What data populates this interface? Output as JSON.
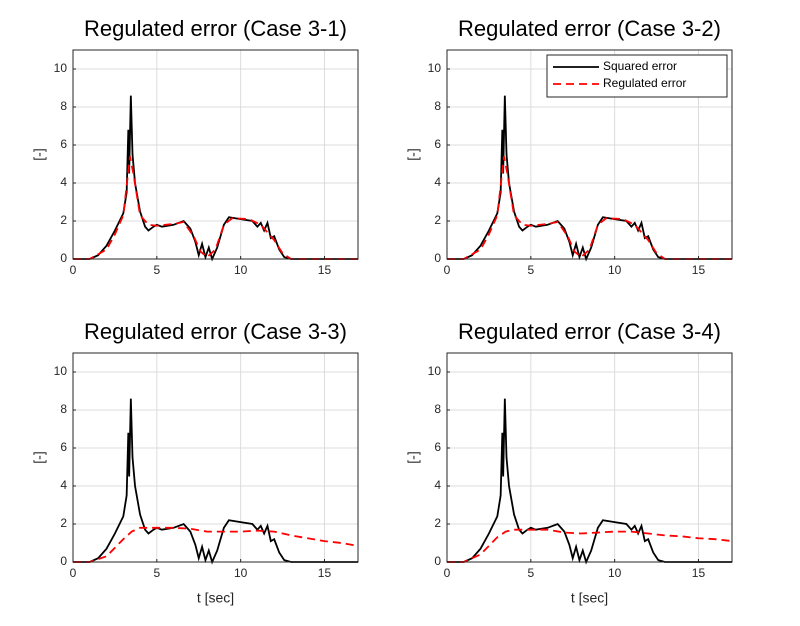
{
  "chart_data": [
    {
      "type": "line",
      "title": "Regulated error (Case 3-1)",
      "y_label": "[-]",
      "xlim": [
        0,
        17
      ],
      "ylim": [
        0,
        11
      ],
      "xticks": [
        0,
        5,
        10,
        15
      ],
      "yticks": [
        0,
        2,
        4,
        6,
        8,
        10
      ],
      "grid": true,
      "series": [
        {
          "color": "#000000",
          "line_style": "solid",
          "x": [
            0,
            1,
            1.5,
            2,
            2.5,
            3,
            3.2,
            3.3,
            3.35,
            3.45,
            3.55,
            3.7,
            4,
            4.3,
            4.5,
            4.8,
            5,
            5.3,
            6,
            6.6,
            7,
            7.3,
            7.5,
            7.7,
            7.9,
            8.1,
            8.3,
            8.6,
            9,
            9.3,
            10,
            10.7,
            11,
            11.2,
            11.4,
            11.6,
            11.8,
            12,
            12.3,
            12.6,
            13,
            17
          ],
          "values": [
            0,
            0,
            0.2,
            0.7,
            1.5,
            2.4,
            3.5,
            6.8,
            4.5,
            8.6,
            5.5,
            4,
            2.5,
            1.7,
            1.5,
            1.7,
            1.8,
            1.7,
            1.8,
            2,
            1.6,
            0.9,
            0.2,
            0.8,
            0.1,
            0.6,
            0,
            0.6,
            1.8,
            2.2,
            2.1,
            2,
            1.7,
            1.9,
            1.5,
            1.9,
            1.1,
            1.2,
            0.5,
            0.1,
            0,
            0
          ]
        },
        {
          "color": "#ff0000",
          "line_style": "dashed",
          "x": [
            0,
            1,
            2,
            2.5,
            3,
            3.4,
            3.6,
            4,
            4.5,
            5,
            6,
            6.6,
            7.2,
            7.6,
            8,
            8.5,
            9,
            9.5,
            10.5,
            11.2,
            12,
            12.5,
            13,
            17
          ],
          "values": [
            0,
            0,
            0.5,
            1.3,
            2.3,
            5.4,
            4.5,
            2.3,
            1.8,
            1.75,
            1.85,
            1.95,
            1.2,
            0.4,
            0.1,
            0.5,
            1.8,
            2.15,
            2.1,
            1.8,
            1,
            0.3,
            0,
            0
          ]
        }
      ]
    },
    {
      "type": "line",
      "title": "Regulated error (Case 3-2)",
      "y_label": "[-]",
      "xlim": [
        0,
        17
      ],
      "ylim": [
        0,
        11
      ],
      "xticks": [
        0,
        5,
        10,
        15
      ],
      "yticks": [
        0,
        2,
        4,
        6,
        8,
        10
      ],
      "grid": true,
      "legend": "upper right",
      "series": [
        {
          "name": "Squared error",
          "color": "#000000",
          "line_style": "solid",
          "x": [
            0,
            1,
            1.5,
            2,
            2.5,
            3,
            3.2,
            3.3,
            3.35,
            3.45,
            3.55,
            3.7,
            4,
            4.3,
            4.5,
            4.8,
            5,
            5.3,
            6,
            6.6,
            7,
            7.3,
            7.5,
            7.7,
            7.9,
            8.1,
            8.3,
            8.6,
            9,
            9.3,
            10,
            10.7,
            11,
            11.2,
            11.4,
            11.6,
            11.8,
            12,
            12.3,
            12.6,
            13,
            17
          ],
          "values": [
            0,
            0,
            0.2,
            0.7,
            1.5,
            2.4,
            3.5,
            6.8,
            4.5,
            8.6,
            5.5,
            4,
            2.5,
            1.7,
            1.5,
            1.7,
            1.8,
            1.7,
            1.8,
            2,
            1.6,
            0.9,
            0.2,
            0.8,
            0.1,
            0.6,
            0,
            0.6,
            1.8,
            2.2,
            2.1,
            2,
            1.7,
            1.9,
            1.5,
            1.9,
            1.1,
            1.2,
            0.5,
            0.1,
            0,
            0
          ]
        },
        {
          "name": "Regulated error",
          "color": "#ff0000",
          "line_style": "dashed",
          "x": [
            0,
            1,
            2,
            2.5,
            3,
            3.4,
            3.6,
            4,
            4.5,
            5,
            6,
            6.6,
            7.2,
            7.6,
            8,
            8.5,
            9,
            9.5,
            10.5,
            11.2,
            12,
            12.5,
            13,
            17
          ],
          "values": [
            0,
            0,
            0.5,
            1.3,
            2.3,
            5.4,
            4.5,
            2.3,
            1.8,
            1.75,
            1.85,
            1.95,
            1.2,
            0.4,
            0.1,
            0.5,
            1.8,
            2.15,
            2.1,
            1.8,
            1,
            0.3,
            0,
            0
          ]
        }
      ]
    },
    {
      "type": "line",
      "title": "Regulated error (Case 3-3)",
      "y_label": "[-]",
      "x_label": "t [sec]",
      "xlim": [
        0,
        17
      ],
      "ylim": [
        0,
        11
      ],
      "xticks": [
        0,
        5,
        10,
        15
      ],
      "yticks": [
        0,
        2,
        4,
        6,
        8,
        10
      ],
      "grid": true,
      "series": [
        {
          "color": "#000000",
          "line_style": "solid",
          "x": [
            0,
            1,
            1.5,
            2,
            2.5,
            3,
            3.2,
            3.3,
            3.35,
            3.45,
            3.55,
            3.7,
            4,
            4.3,
            4.5,
            4.8,
            5,
            5.3,
            6,
            6.6,
            7,
            7.3,
            7.5,
            7.7,
            7.9,
            8.1,
            8.3,
            8.6,
            9,
            9.3,
            10,
            10.7,
            11,
            11.2,
            11.4,
            11.6,
            11.8,
            12,
            12.3,
            12.6,
            13,
            17
          ],
          "values": [
            0,
            0,
            0.2,
            0.7,
            1.5,
            2.4,
            3.5,
            6.8,
            4.5,
            8.6,
            5.5,
            4,
            2.5,
            1.7,
            1.5,
            1.7,
            1.8,
            1.7,
            1.8,
            2,
            1.6,
            0.9,
            0.2,
            0.8,
            0.1,
            0.6,
            0,
            0.6,
            1.8,
            2.2,
            2.1,
            2,
            1.7,
            1.9,
            1.5,
            1.9,
            1.1,
            1.2,
            0.5,
            0.1,
            0,
            0
          ]
        },
        {
          "color": "#ff0000",
          "line_style": "dashed",
          "x": [
            0,
            1,
            2,
            3,
            3.5,
            4,
            5,
            6,
            7,
            8,
            9,
            10,
            11,
            12,
            13,
            14,
            15,
            16,
            17
          ],
          "values": [
            0,
            0,
            0.3,
            1.2,
            1.6,
            1.8,
            1.8,
            1.8,
            1.75,
            1.6,
            1.6,
            1.6,
            1.65,
            1.6,
            1.4,
            1.25,
            1.1,
            1,
            0.85
          ]
        }
      ]
    },
    {
      "type": "line",
      "title": "Regulated error (Case 3-4)",
      "y_label": "[-]",
      "x_label": "t [sec]",
      "xlim": [
        0,
        17
      ],
      "ylim": [
        0,
        11
      ],
      "xticks": [
        0,
        5,
        10,
        15
      ],
      "yticks": [
        0,
        2,
        4,
        6,
        8,
        10
      ],
      "grid": true,
      "series": [
        {
          "color": "#000000",
          "line_style": "solid",
          "x": [
            0,
            1,
            1.5,
            2,
            2.5,
            3,
            3.2,
            3.3,
            3.35,
            3.45,
            3.55,
            3.7,
            4,
            4.3,
            4.5,
            4.8,
            5,
            5.3,
            6,
            6.6,
            7,
            7.3,
            7.5,
            7.7,
            7.9,
            8.1,
            8.3,
            8.6,
            9,
            9.3,
            10,
            10.7,
            11,
            11.2,
            11.4,
            11.6,
            11.8,
            12,
            12.3,
            12.6,
            13,
            17
          ],
          "values": [
            0,
            0,
            0.2,
            0.7,
            1.5,
            2.4,
            3.5,
            6.8,
            4.5,
            8.6,
            5.5,
            4,
            2.5,
            1.7,
            1.5,
            1.7,
            1.8,
            1.7,
            1.8,
            2,
            1.6,
            0.9,
            0.2,
            0.8,
            0.1,
            0.6,
            0,
            0.6,
            1.8,
            2.2,
            2.1,
            2,
            1.7,
            1.9,
            1.5,
            1.9,
            1.1,
            1.2,
            0.5,
            0.1,
            0,
            0
          ]
        },
        {
          "color": "#ff0000",
          "line_style": "dashed",
          "x": [
            0,
            1,
            2,
            3,
            3.5,
            4,
            5,
            6,
            7,
            8,
            9,
            10,
            11,
            12,
            13,
            14,
            15,
            16,
            17
          ],
          "values": [
            0,
            0,
            0.4,
            1.3,
            1.6,
            1.7,
            1.7,
            1.7,
            1.55,
            1.5,
            1.55,
            1.6,
            1.6,
            1.5,
            1.4,
            1.35,
            1.25,
            1.2,
            1.1
          ]
        }
      ]
    }
  ]
}
